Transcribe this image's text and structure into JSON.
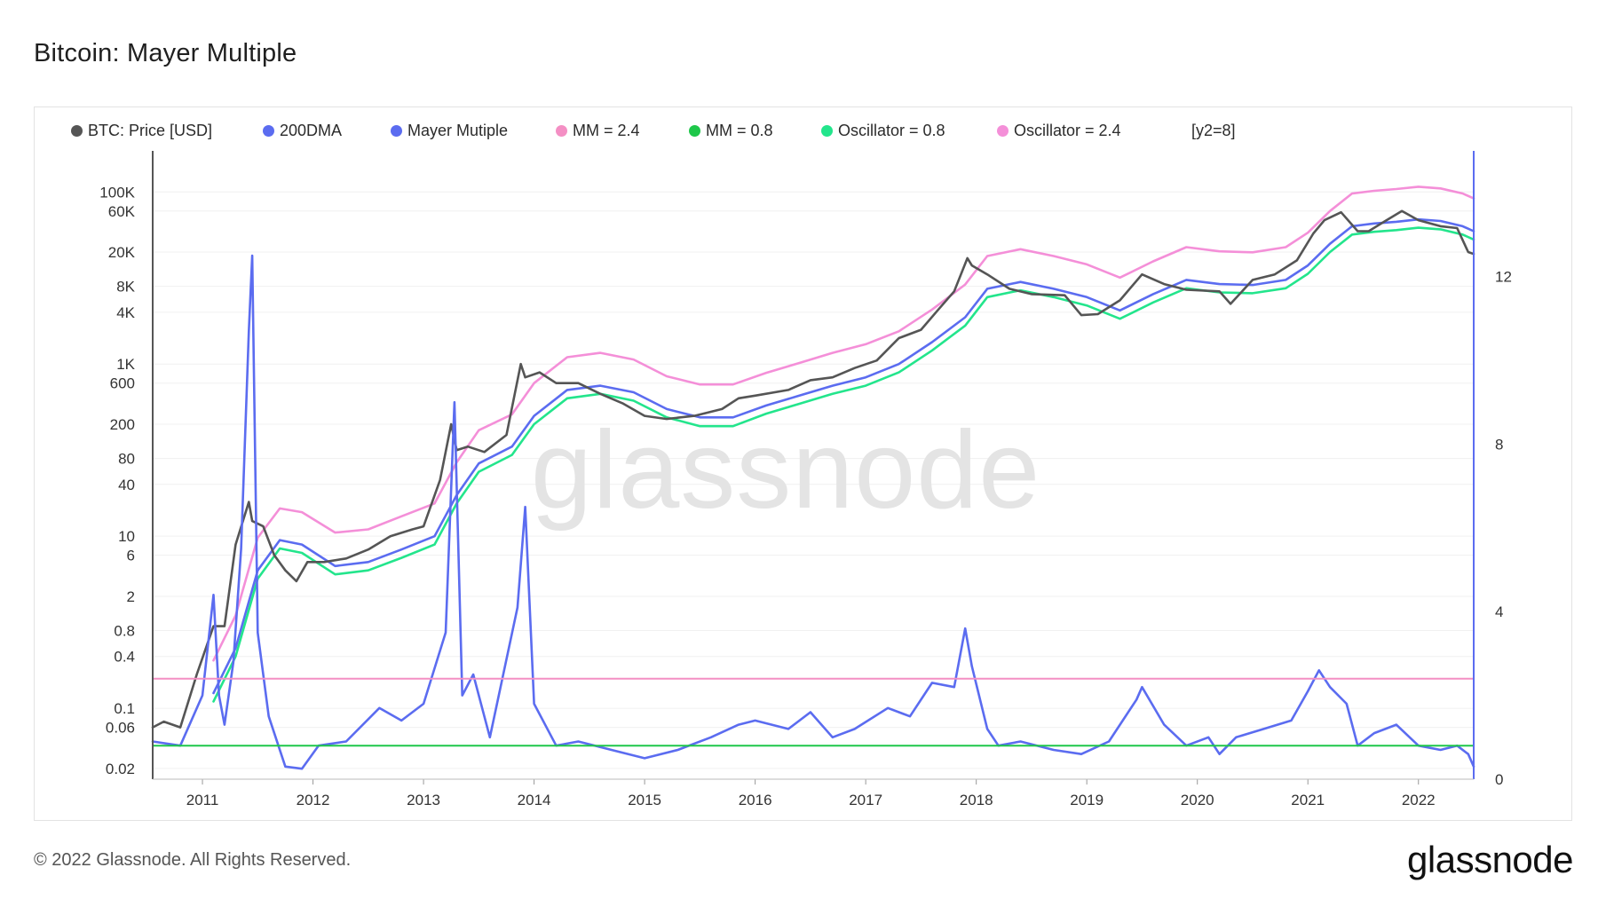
{
  "page": {
    "title": "Bitcoin: Mayer Multiple",
    "copyright": "© 2022 Glassnode. All Rights Reserved.",
    "brand": "glassnode",
    "watermark": "glassnode"
  },
  "legend": {
    "items": [
      {
        "label": "BTC: Price [USD]",
        "color": "#555555"
      },
      {
        "label": "200DMA",
        "color": "#5b6cf0"
      },
      {
        "label": "Mayer Mutiple",
        "color": "#5b6cf0"
      },
      {
        "label": "MM = 2.4",
        "color": "#f48fc4"
      },
      {
        "label": "MM = 0.8",
        "color": "#1ec74a"
      },
      {
        "label": "Oscillator = 0.8",
        "color": "#23e58c"
      },
      {
        "label": "Oscillator = 2.4",
        "color": "#f48fd8"
      }
    ],
    "note": "[y2=8]"
  },
  "chart_data": {
    "type": "line",
    "title": "Bitcoin: Mayer Multiple",
    "y_scale": "log",
    "x_ticks": [
      "2011",
      "2012",
      "2013",
      "2014",
      "2015",
      "2016",
      "2017",
      "2018",
      "2019",
      "2020",
      "2021",
      "2022"
    ],
    "y_ticks": [
      "100K",
      "60K",
      "20K",
      "8K",
      "4K",
      "1K",
      "600",
      "200",
      "80",
      "40",
      "10",
      "6",
      "2",
      "0.8",
      "0.4",
      "0.1",
      "0.06",
      "0.02"
    ],
    "y2_ticks": [
      "12",
      "8",
      "4",
      "0"
    ],
    "ylim": [
      0.015,
      300000
    ],
    "y2lim": [
      0,
      15
    ],
    "xlim": [
      2010.55,
      2022.5
    ],
    "grid": true,
    "legend_position": "top",
    "thresholds": {
      "mm_high": 2.4,
      "mm_low": 0.8
    },
    "series": [
      {
        "name": "BTC: Price [USD]",
        "axis": "y",
        "color": "#555555",
        "x": [
          2010.55,
          2010.65,
          2010.8,
          2010.95,
          2011.1,
          2011.2,
          2011.3,
          2011.42,
          2011.45,
          2011.55,
          2011.65,
          2011.75,
          2011.85,
          2011.95,
          2012.1,
          2012.3,
          2012.5,
          2012.7,
          2012.9,
          2013.0,
          2013.15,
          2013.25,
          2013.3,
          2013.4,
          2013.55,
          2013.75,
          2013.88,
          2013.92,
          2014.05,
          2014.2,
          2014.4,
          2014.6,
          2014.8,
          2015.0,
          2015.2,
          2015.45,
          2015.7,
          2015.85,
          2016.0,
          2016.3,
          2016.5,
          2016.7,
          2016.9,
          2017.1,
          2017.3,
          2017.5,
          2017.65,
          2017.8,
          2017.92,
          2017.96,
          2018.1,
          2018.3,
          2018.5,
          2018.8,
          2018.95,
          2019.1,
          2019.3,
          2019.5,
          2019.7,
          2019.9,
          2020.2,
          2020.3,
          2020.5,
          2020.7,
          2020.9,
          2021.05,
          2021.15,
          2021.3,
          2021.45,
          2021.55,
          2021.7,
          2021.85,
          2022.0,
          2022.2,
          2022.35,
          2022.45,
          2022.5
        ],
        "values": [
          0.06,
          0.07,
          0.06,
          0.25,
          0.9,
          0.9,
          8,
          25,
          15,
          13,
          6,
          4,
          3,
          5,
          5,
          5.5,
          7,
          10,
          12,
          13,
          45,
          200,
          100,
          110,
          95,
          150,
          1000,
          700,
          800,
          600,
          600,
          450,
          350,
          250,
          230,
          250,
          300,
          400,
          430,
          500,
          650,
          700,
          900,
          1100,
          2000,
          2500,
          4200,
          7000,
          17000,
          14000,
          11000,
          7500,
          6500,
          6300,
          3700,
          3800,
          5500,
          11000,
          8500,
          7300,
          7000,
          5000,
          9500,
          11000,
          16000,
          33000,
          47000,
          58000,
          35000,
          35000,
          46000,
          60000,
          47000,
          40000,
          38000,
          20000,
          19000
        ]
      },
      {
        "name": "200DMA",
        "axis": "y",
        "color": "#5b6cf0",
        "x": [
          2011.1,
          2011.3,
          2011.5,
          2011.7,
          2011.9,
          2012.2,
          2012.5,
          2012.8,
          2013.1,
          2013.3,
          2013.5,
          2013.8,
          2014.0,
          2014.3,
          2014.6,
          2014.9,
          2015.2,
          2015.5,
          2015.8,
          2016.1,
          2016.4,
          2016.7,
          2017.0,
          2017.3,
          2017.6,
          2017.9,
          2018.1,
          2018.4,
          2018.7,
          2019.0,
          2019.3,
          2019.6,
          2019.9,
          2020.2,
          2020.5,
          2020.8,
          2021.0,
          2021.2,
          2021.4,
          2021.6,
          2021.8,
          2022.0,
          2022.2,
          2022.4,
          2022.5
        ],
        "values": [
          0.15,
          0.5,
          4,
          9,
          8,
          4.5,
          5,
          7,
          10,
          30,
          70,
          110,
          250,
          500,
          560,
          470,
          300,
          240,
          240,
          330,
          430,
          560,
          700,
          1000,
          1800,
          3500,
          7500,
          9000,
          7500,
          6000,
          4200,
          6500,
          9500,
          8500,
          8300,
          9500,
          14000,
          25000,
          40000,
          43000,
          45000,
          48000,
          46000,
          40000,
          35000
        ]
      },
      {
        "name": "Mayer Mutiple",
        "axis": "y2",
        "color": "#5b6cf0",
        "x": [
          2010.55,
          2010.8,
          2011.0,
          2011.1,
          2011.15,
          2011.2,
          2011.28,
          2011.35,
          2011.42,
          2011.45,
          2011.5,
          2011.6,
          2011.75,
          2011.9,
          2012.05,
          2012.3,
          2012.6,
          2012.8,
          2013.0,
          2013.2,
          2013.28,
          2013.35,
          2013.45,
          2013.6,
          2013.85,
          2013.92,
          2014.0,
          2014.2,
          2014.4,
          2014.7,
          2015.0,
          2015.3,
          2015.6,
          2015.85,
          2016.0,
          2016.3,
          2016.5,
          2016.7,
          2016.9,
          2017.2,
          2017.4,
          2017.6,
          2017.8,
          2017.9,
          2017.96,
          2018.1,
          2018.2,
          2018.4,
          2018.7,
          2018.95,
          2019.2,
          2019.45,
          2019.5,
          2019.7,
          2019.9,
          2020.1,
          2020.2,
          2020.35,
          2020.6,
          2020.85,
          2021.0,
          2021.1,
          2021.2,
          2021.35,
          2021.45,
          2021.6,
          2021.8,
          2022.0,
          2022.2,
          2022.35,
          2022.45,
          2022.5
        ],
        "values": [
          0.9,
          0.8,
          2.0,
          4.4,
          2.0,
          1.3,
          2.8,
          5.5,
          10.7,
          12.5,
          3.5,
          1.5,
          0.3,
          0.25,
          0.8,
          0.9,
          1.7,
          1.4,
          1.8,
          3.5,
          9.0,
          2.0,
          2.5,
          1.0,
          4.1,
          6.5,
          1.8,
          0.8,
          0.9,
          0.7,
          0.5,
          0.7,
          1.0,
          1.3,
          1.4,
          1.2,
          1.6,
          1.0,
          1.2,
          1.7,
          1.5,
          2.3,
          2.2,
          3.6,
          2.7,
          1.2,
          0.8,
          0.9,
          0.7,
          0.6,
          0.9,
          1.9,
          2.2,
          1.3,
          0.8,
          1.0,
          0.6,
          1.0,
          1.2,
          1.4,
          2.1,
          2.6,
          2.2,
          1.8,
          0.8,
          1.1,
          1.3,
          0.8,
          0.7,
          0.8,
          0.6,
          0.3
        ]
      },
      {
        "name": "Oscillator = 2.4",
        "axis": "y",
        "color": "#f48fd8",
        "x": [
          2011.1,
          2011.3,
          2011.5,
          2011.7,
          2011.9,
          2012.2,
          2012.5,
          2012.8,
          2013.1,
          2013.3,
          2013.5,
          2013.8,
          2014.0,
          2014.3,
          2014.6,
          2014.9,
          2015.2,
          2015.5,
          2015.8,
          2016.1,
          2016.4,
          2016.7,
          2017.0,
          2017.3,
          2017.6,
          2017.9,
          2018.1,
          2018.4,
          2018.7,
          2019.0,
          2019.3,
          2019.6,
          2019.9,
          2020.2,
          2020.5,
          2020.8,
          2021.0,
          2021.2,
          2021.4,
          2021.6,
          2021.8,
          2022.0,
          2022.2,
          2022.4,
          2022.5
        ],
        "values": [
          0.36,
          1.2,
          9.6,
          21,
          19,
          11,
          12,
          17,
          24,
          72,
          170,
          260,
          600,
          1200,
          1350,
          1130,
          720,
          580,
          580,
          790,
          1030,
          1350,
          1700,
          2400,
          4300,
          8400,
          18000,
          21600,
          18000,
          14400,
          10100,
          15600,
          22800,
          20400,
          19900,
          22800,
          33600,
          60000,
          96000,
          103000,
          108000,
          115000,
          110000,
          96000,
          84000
        ]
      },
      {
        "name": "Oscillator = 0.8",
        "axis": "y",
        "color": "#23e58c",
        "x": [
          2011.1,
          2011.3,
          2011.5,
          2011.7,
          2011.9,
          2012.2,
          2012.5,
          2012.8,
          2013.1,
          2013.3,
          2013.5,
          2013.8,
          2014.0,
          2014.3,
          2014.6,
          2014.9,
          2015.2,
          2015.5,
          2015.8,
          2016.1,
          2016.4,
          2016.7,
          2017.0,
          2017.3,
          2017.6,
          2017.9,
          2018.1,
          2018.4,
          2018.7,
          2019.0,
          2019.3,
          2019.6,
          2019.9,
          2020.2,
          2020.5,
          2020.8,
          2021.0,
          2021.2,
          2021.4,
          2021.6,
          2021.8,
          2022.0,
          2022.2,
          2022.4,
          2022.5
        ],
        "values": [
          0.12,
          0.4,
          3.2,
          7.2,
          6.4,
          3.6,
          4,
          5.6,
          8,
          24,
          56,
          88,
          200,
          400,
          450,
          375,
          240,
          190,
          190,
          265,
          345,
          450,
          560,
          800,
          1440,
          2800,
          6000,
          7200,
          6000,
          4800,
          3360,
          5200,
          7600,
          6800,
          6650,
          7600,
          11200,
          20000,
          32000,
          34400,
          36000,
          38400,
          36800,
          32000,
          28000
        ]
      },
      {
        "name": "MM = 2.4",
        "axis": "y2",
        "color": "#f48fc4",
        "x": [
          2010.55,
          2022.5
        ],
        "values": [
          2.4,
          2.4
        ]
      },
      {
        "name": "MM = 0.8",
        "axis": "y2",
        "color": "#1ec74a",
        "x": [
          2010.55,
          2022.5
        ],
        "values": [
          0.8,
          0.8
        ]
      }
    ]
  }
}
